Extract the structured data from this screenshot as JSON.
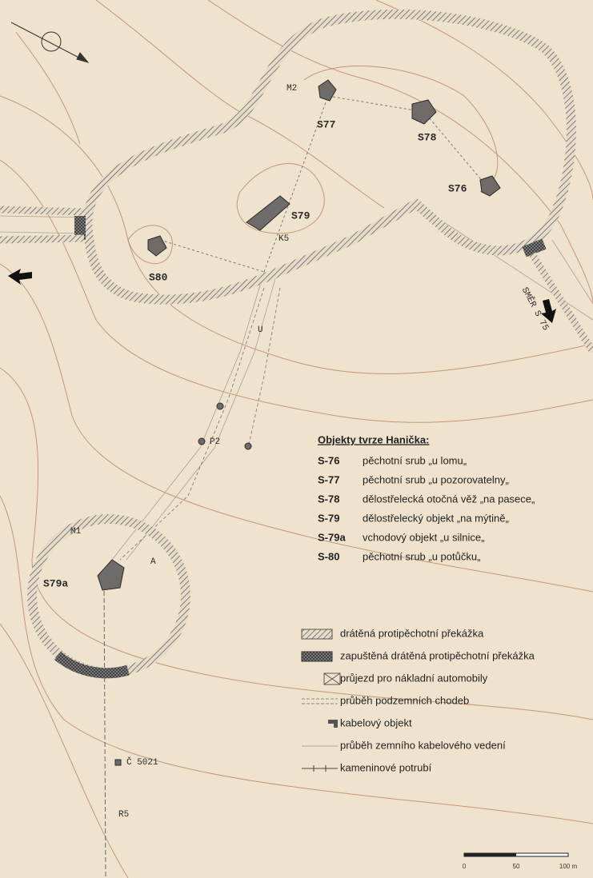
{
  "map_labels": [
    "S77",
    "S78",
    "S76",
    "S79",
    "S80",
    "S79a",
    "M2",
    "K5",
    "U",
    "P2",
    "M1",
    "A",
    "R5",
    "Č 5021",
    "SMĚR S 75"
  ],
  "legend": {
    "title": "Objekty tvrze Hanička:",
    "objects": [
      {
        "code": "S-76",
        "name": "pěchotní srub „u lomu„"
      },
      {
        "code": "S-77",
        "name": "pěchotní srub „u pozorovatelny„"
      },
      {
        "code": "S-78",
        "name": "dělostřelecká otočná věž „na pasece„"
      },
      {
        "code": "S-79",
        "name": "dělostřelecký objekt „na mýtině„"
      },
      {
        "code": "S-79a",
        "name": "vchodový objekt „u silnice„"
      },
      {
        "code": "S-80",
        "name": "pěchotní srub „u potůčku„"
      }
    ],
    "symbols": [
      "drátěná protipěchotní překážka",
      "zapuštěná drátěná protipěchotní překážka",
      "průjezd pro nákladní automobily",
      "průběh podzemních chodeb",
      "kabelový objekt",
      "průběh zemního kabelového vedení",
      "kameninové potrubí"
    ]
  },
  "scale": [
    "0",
    "50",
    "100 m"
  ]
}
